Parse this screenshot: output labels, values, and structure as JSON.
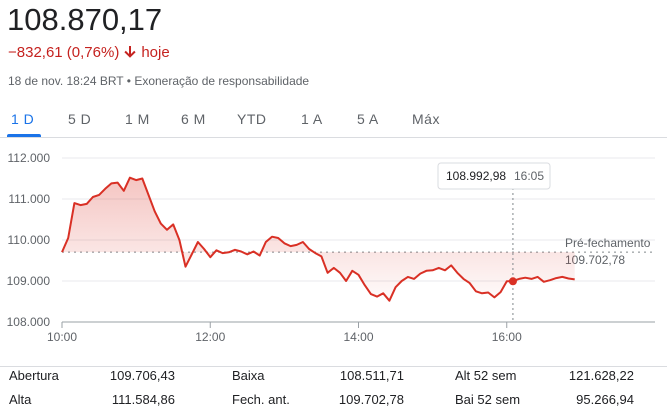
{
  "header": {
    "price": "108.870,17",
    "change": "−832,61 (0,76%)",
    "change_direction_label": "hoje",
    "timestamp": "18 de nov. 18:24 BRT",
    "disclaimer": "Exoneração de responsabilidade",
    "separator": "•",
    "change_color": "#c5221f",
    "accent_color": "#1a73e8"
  },
  "tabs": [
    {
      "label": "1 D",
      "active": true
    },
    {
      "label": "5 D",
      "active": false
    },
    {
      "label": "1 M",
      "active": false
    },
    {
      "label": "6 M",
      "active": false
    },
    {
      "label": "YTD",
      "active": false
    },
    {
      "label": "1 A",
      "active": false
    },
    {
      "label": "5 A",
      "active": false
    },
    {
      "label": "Máx",
      "active": false
    }
  ],
  "chart_data": {
    "type": "line",
    "ylim": [
      108000,
      112000
    ],
    "yticks": [
      "112.000",
      "111.000",
      "110.000",
      "109.000",
      "108.000"
    ],
    "ytick_values": [
      112000,
      111000,
      110000,
      109000,
      108000
    ],
    "xticks": [
      "10:00",
      "12:00",
      "14:00",
      "16:00"
    ],
    "xtick_values": [
      "10:00",
      "12:00",
      "14:00",
      "16:00"
    ],
    "xlim": [
      "10:00",
      "18:00"
    ],
    "line_color": "#d93025",
    "fill_color": "#d93025",
    "previous_close": {
      "label": "Pré-fechamento",
      "value_text": "109.702,78",
      "value": 109702.78
    },
    "tooltip": {
      "value": "108.992,98",
      "time": "16:05",
      "x": "16:05",
      "y": 108992.98
    },
    "series": [
      {
        "x": [
          "10:00",
          "10:05",
          "10:10",
          "10:15",
          "10:20",
          "10:25",
          "10:30",
          "10:35",
          "10:40",
          "10:45",
          "10:50",
          "10:55",
          "11:00",
          "11:05",
          "11:10",
          "11:15",
          "11:20",
          "11:25",
          "11:30",
          "11:35",
          "11:40",
          "11:45",
          "11:50",
          "11:55",
          "12:00",
          "12:05",
          "12:10",
          "12:15",
          "12:20",
          "12:25",
          "12:30",
          "12:35",
          "12:40",
          "12:45",
          "12:50",
          "12:55",
          "13:00",
          "13:05",
          "13:10",
          "13:15",
          "13:20",
          "13:25",
          "13:30",
          "13:35",
          "13:40",
          "13:45",
          "13:50",
          "13:55",
          "14:00",
          "14:05",
          "14:10",
          "14:15",
          "14:20",
          "14:25",
          "14:30",
          "14:35",
          "14:40",
          "14:45",
          "14:50",
          "14:55",
          "15:00",
          "15:05",
          "15:10",
          "15:15",
          "15:20",
          "15:25",
          "15:30",
          "15:35",
          "15:40",
          "15:45",
          "15:50",
          "15:55",
          "16:00",
          "16:05",
          "16:10",
          "16:15",
          "16:20",
          "16:25",
          "16:30",
          "16:35",
          "16:40",
          "16:45",
          "16:50",
          "16:55"
        ],
        "values": [
          109706,
          110050,
          110900,
          110850,
          110880,
          111050,
          111100,
          111250,
          111380,
          111400,
          111200,
          111520,
          111460,
          111500,
          111100,
          110700,
          110400,
          110250,
          110380,
          110000,
          109350,
          109650,
          109950,
          109780,
          109580,
          109750,
          109680,
          109700,
          109760,
          109720,
          109650,
          109720,
          109620,
          109950,
          110080,
          110050,
          109920,
          109850,
          109880,
          109950,
          109780,
          109680,
          109600,
          109200,
          109320,
          109200,
          109000,
          109250,
          109150,
          108900,
          108680,
          108620,
          108700,
          108520,
          108850,
          109000,
          109100,
          109050,
          109180,
          109250,
          109260,
          109320,
          109260,
          109380,
          109200,
          109050,
          108950,
          108750,
          108700,
          108720,
          108600,
          108730,
          108993,
          109000,
          109050,
          109080,
          109050,
          109100,
          108980,
          109020,
          109070,
          109100,
          109060,
          109040
        ]
      }
    ]
  },
  "stats": {
    "col1": [
      {
        "label": "Abertura",
        "value": "109.706,43"
      },
      {
        "label": "Alta",
        "value": "111.584,86"
      }
    ],
    "col2": [
      {
        "label": "Baixa",
        "value": "108.511,71"
      },
      {
        "label": "Fech. ant.",
        "value": "109.702,78"
      }
    ],
    "col3": [
      {
        "label": "Alt 52 sem",
        "value": "121.628,22"
      },
      {
        "label": "Bai 52 sem",
        "value": "95.266,94"
      }
    ]
  }
}
